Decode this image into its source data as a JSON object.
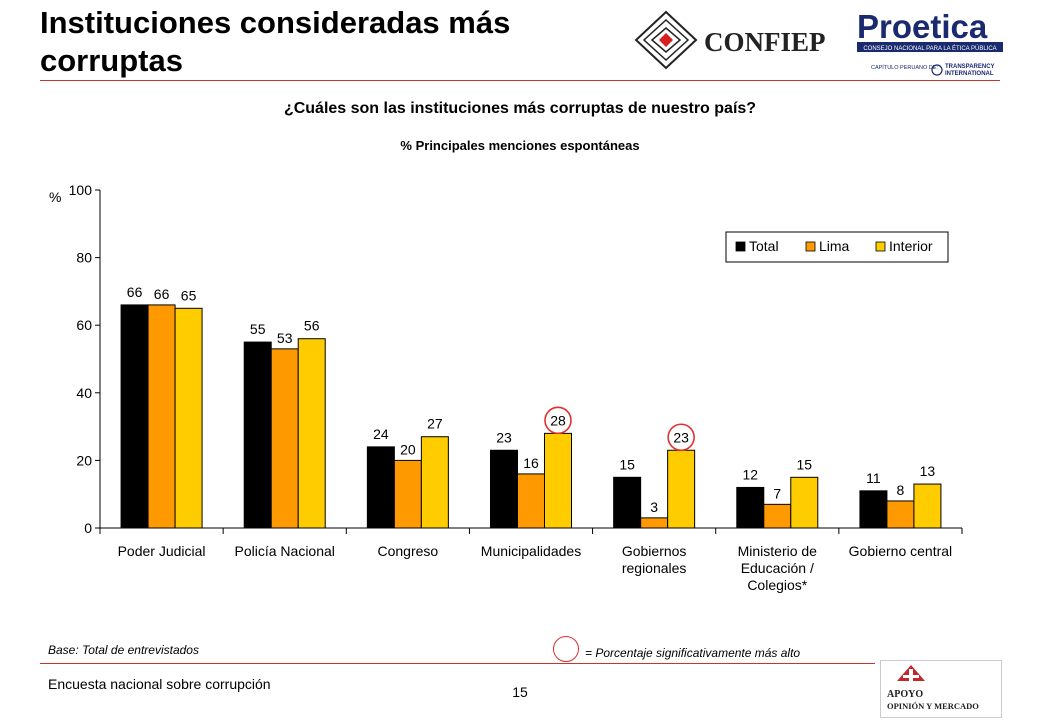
{
  "header": {
    "title": "Instituciones consideradas más corruptas",
    "logo_confiep": "CONFIEP",
    "logo_proetica": "Proetica",
    "logo_proetica_sub": "CONSEJO NACIONAL PARA LA ÉTICA PÚBLICA",
    "logo_proetica_cap": "CAPÍTULO PERUANO DE:",
    "logo_ti_1": "TRANSPARENCY",
    "logo_ti_2": "INTERNATIONAL"
  },
  "question": "¿Cuáles son las instituciones más corruptas de nuestro país?",
  "chart_data": {
    "type": "bar",
    "subtitle": "% Principales menciones espontáneas",
    "ylabel": "%",
    "ylim": [
      0,
      100
    ],
    "yticks": [
      0,
      20,
      40,
      60,
      80,
      100
    ],
    "legend_position": "top-right",
    "categories": [
      [
        "Poder Judicial"
      ],
      [
        "Policía Nacional"
      ],
      [
        "Congreso"
      ],
      [
        "Municipalidades"
      ],
      [
        "Gobiernos",
        "regionales"
      ],
      [
        "Ministerio de",
        "Educación /",
        "Colegios*"
      ],
      [
        "Gobierno central"
      ]
    ],
    "series": [
      {
        "name": "Total",
        "color": "#000000",
        "values": [
          66,
          55,
          24,
          23,
          15,
          12,
          11
        ]
      },
      {
        "name": "Lima",
        "color": "#ff9900",
        "values": [
          66,
          53,
          20,
          16,
          3,
          7,
          8
        ]
      },
      {
        "name": "Interior",
        "color": "#ffcc00",
        "values": [
          65,
          56,
          27,
          28,
          23,
          15,
          13
        ]
      }
    ],
    "highlighted": [
      {
        "category": 3,
        "series": 2
      },
      {
        "category": 4,
        "series": 2
      }
    ]
  },
  "footer": {
    "base": "Base: Total de entrevistados",
    "significance_note": "= Porcentaje significativamente más alto",
    "survey": "Encuesta nacional sobre corrupción",
    "page_number": "15",
    "logo_apoyo_1": "APOYO",
    "logo_apoyo_2": "OPINIÓN Y MERCADO"
  }
}
